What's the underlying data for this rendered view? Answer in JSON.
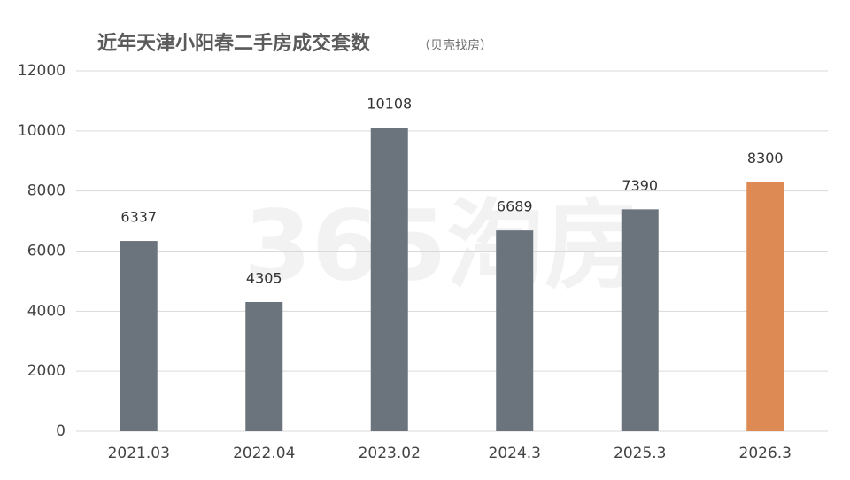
{
  "chart_data": {
    "type": "bar",
    "title": "近年天津小阳春二手房成交套数",
    "subtitle": "（贝壳找房）",
    "watermark": "365淘房",
    "categories": [
      "2021.03",
      "2022.04",
      "2023.02",
      "2024.3",
      "2025.3",
      "2026.3"
    ],
    "values": [
      6337,
      4305,
      10108,
      6689,
      7390,
      8300
    ],
    "colors": [
      "#6b737d",
      "#6b737d",
      "#6b737d",
      "#6b737d",
      "#6b737d",
      "#de8a54"
    ],
    "ylim": [
      0,
      12000
    ],
    "yticks": [
      0,
      2000,
      4000,
      6000,
      8000,
      10000,
      12000
    ],
    "grid": true
  }
}
